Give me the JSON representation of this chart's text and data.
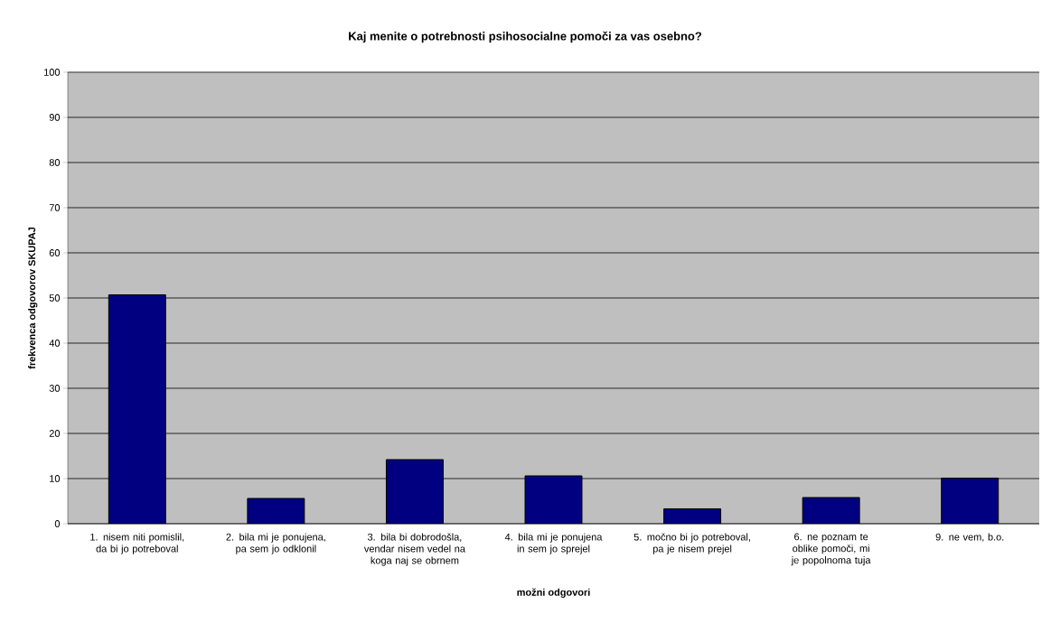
{
  "chart_data": {
    "type": "bar",
    "title": "Kaj menite o potrebnosti psihosocialne pomoči za vas osebno?",
    "xlabel": "možni odgovori",
    "ylabel": "frekvenca odgovorov SKUPAJ",
    "categories": [
      "1. nisem niti pomislil, da bi jo potreboval",
      "2. bila mi je ponujena, pa sem jo odklonil",
      "3. bila bi dobrodošla, vendar nisem vedel na koga naj se obrnem",
      "4. bila mi je ponujena in sem jo sprejel",
      "5. močno bi jo potreboval, pa je nisem prejel",
      "6. ne poznam te oblike pomoči, mi je popolnoma tuja",
      "9. ne vem, b.o."
    ],
    "values": [
      50.7,
      5.6,
      14.2,
      10.6,
      3.3,
      5.8,
      10.1
    ],
    "color": "#000080",
    "ylim": [
      0,
      100
    ],
    "yticks": [
      0,
      10,
      20,
      30,
      40,
      50,
      60,
      70,
      80,
      90,
      100
    ],
    "grid": "y"
  }
}
